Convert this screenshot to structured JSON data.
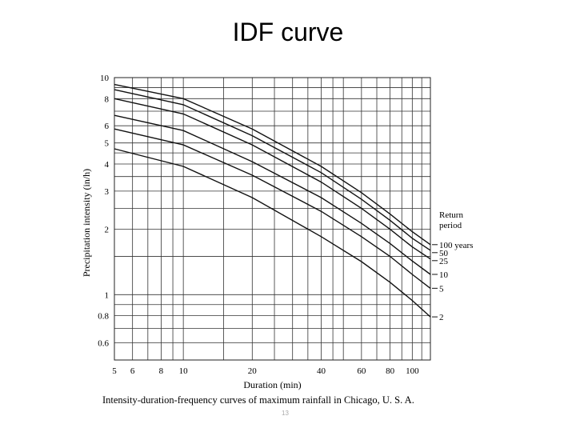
{
  "slide": {
    "title": "IDF curve",
    "caption": "Intensity-duration-frequency curves of maximum rainfall in Chicago, U. S. A.",
    "slide_number": "13"
  },
  "chart_data": {
    "type": "line",
    "title": "",
    "xlabel": "Duration (min)",
    "ylabel": "Precipitation intensity (in/h)",
    "x_scale": "log",
    "y_scale": "log",
    "xlim": [
      5,
      120
    ],
    "ylim": [
      0.5,
      10
    ],
    "x_ticks": [
      5,
      6,
      8,
      10,
      20,
      40,
      60,
      80,
      100
    ],
    "x_grid": [
      5,
      6,
      7,
      8,
      9,
      10,
      15,
      20,
      25,
      30,
      35,
      40,
      45,
      50,
      60,
      70,
      80,
      90,
      100,
      110,
      120
    ],
    "y_ticks": [
      0.6,
      0.8,
      1,
      2,
      3,
      4,
      5,
      6,
      8,
      10
    ],
    "y_grid": [
      0.5,
      0.6,
      0.7,
      0.8,
      0.9,
      1,
      1.5,
      2,
      2.5,
      3,
      3.5,
      4,
      4.5,
      5,
      6,
      7,
      8,
      9,
      10
    ],
    "grid": true,
    "legend_title": "Return period",
    "legend_position": "right",
    "x": [
      5,
      10,
      20,
      40,
      60,
      80,
      100,
      120
    ],
    "series": [
      {
        "name": "100 years",
        "values": [
          9.3,
          8.0,
          5.8,
          3.9,
          2.95,
          2.35,
          1.95,
          1.7
        ]
      },
      {
        "name": "50",
        "values": [
          8.8,
          7.5,
          5.4,
          3.65,
          2.75,
          2.2,
          1.82,
          1.6
        ]
      },
      {
        "name": "25",
        "values": [
          8.0,
          6.8,
          4.9,
          3.3,
          2.5,
          2.0,
          1.66,
          1.46
        ]
      },
      {
        "name": "10",
        "values": [
          6.7,
          5.7,
          4.1,
          2.8,
          2.13,
          1.72,
          1.43,
          1.24
        ]
      },
      {
        "name": "5",
        "values": [
          5.8,
          4.9,
          3.55,
          2.42,
          1.85,
          1.5,
          1.24,
          1.07
        ]
      },
      {
        "name": "2",
        "values": [
          4.7,
          3.9,
          2.8,
          1.85,
          1.42,
          1.14,
          0.94,
          0.79
        ]
      }
    ]
  }
}
